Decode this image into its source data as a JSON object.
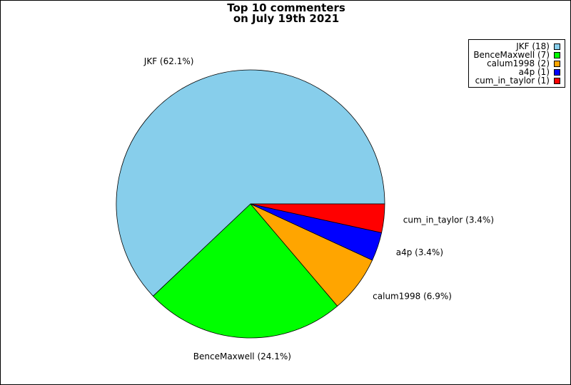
{
  "chart_data": {
    "type": "pie",
    "title_lines": [
      "Top 10 commenters",
      "on July 19th 2021"
    ],
    "slices": [
      {
        "name": "JKF",
        "value": 18,
        "label": "JKF (62.1%)",
        "legend": "JKF (18)",
        "color": "#87CEEB"
      },
      {
        "name": "BenceMaxwell",
        "value": 7,
        "label": "BenceMaxwell (24.1%)",
        "legend": "BenceMaxwell (7)",
        "color": "#00FF00"
      },
      {
        "name": "calum1998",
        "value": 2,
        "label": "calum1998 (6.9%)",
        "legend": "calum1998 (2)",
        "color": "#FFA500"
      },
      {
        "name": "a4p",
        "value": 1,
        "label": "a4p (3.4%)",
        "legend": "a4p (1)",
        "color": "#0000FF"
      },
      {
        "name": "cum_in_taylor",
        "value": 1,
        "label": "cum_in_taylor (3.4%)",
        "legend": "cum_in_taylor (1)",
        "color": "#FF0000"
      }
    ],
    "start_angle": "0 degrees (3 o'clock), counter-clockwise",
    "legend_placement": "top-right"
  }
}
